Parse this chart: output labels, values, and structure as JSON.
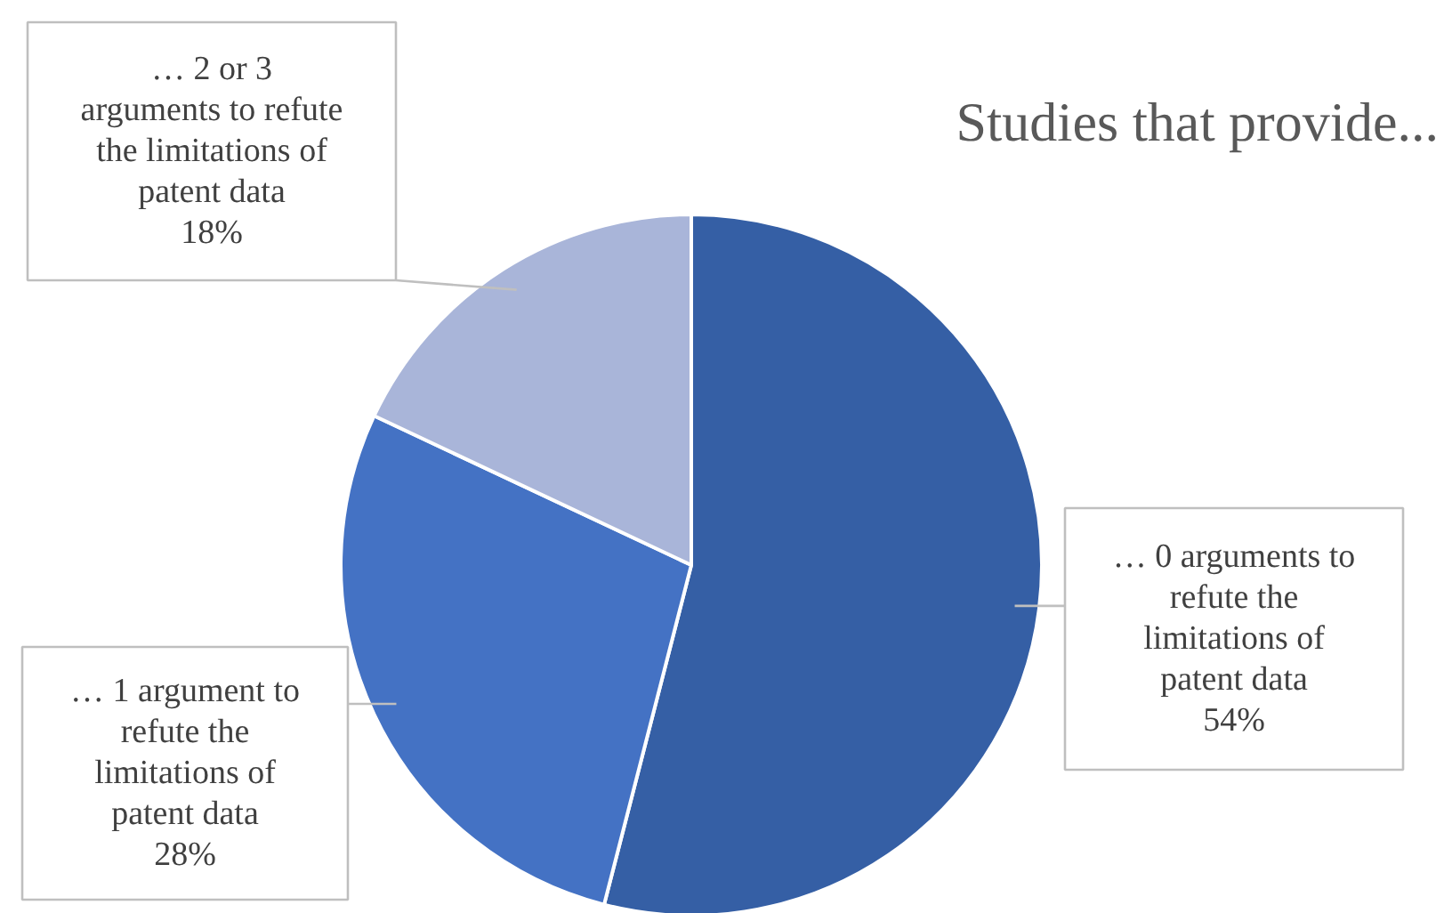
{
  "chart_data": {
    "type": "pie",
    "title": "Studies that provide...",
    "categories": [
      "… 0 arguments to\nrefute the\nlimitations of\npatent data",
      "… 1 argument to\nrefute the\nlimitations of\npatent data",
      "… 2 or 3\narguments to refute\nthe limitations of\npatent data"
    ],
    "values": [
      54,
      28,
      18
    ],
    "colors": [
      "#355fa5",
      "#4472c4",
      "#a9b5d9"
    ],
    "value_labels": [
      "54%",
      "28%",
      "18%"
    ]
  }
}
